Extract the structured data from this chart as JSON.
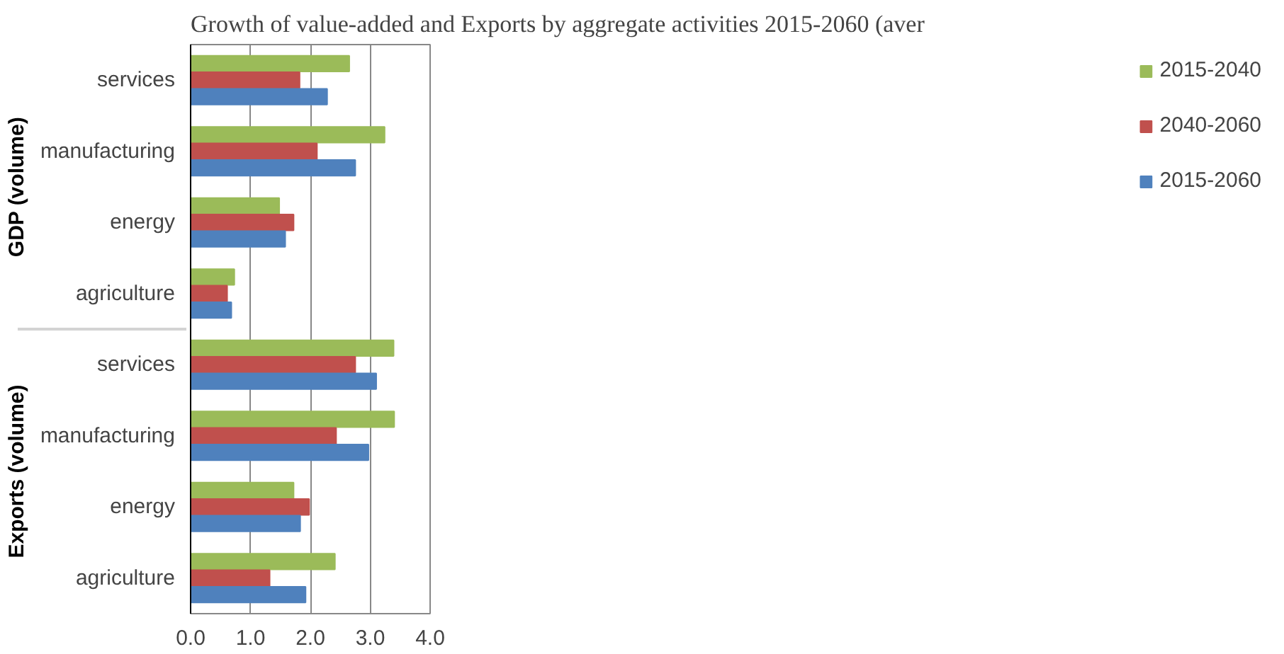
{
  "chart_data": {
    "type": "bar",
    "orientation": "horizontal",
    "title": "Growth of value-added and Exports by aggregate activities 2015-2060 (aver",
    "categories": [
      "services",
      "manufacturing",
      "energy",
      "agriculture",
      "services",
      "manufacturing",
      "energy",
      "agriculture"
    ],
    "annotations": [
      "GDP (volume)",
      "Exports (volume)"
    ],
    "series": [
      {
        "name": "2015-2040",
        "color": "#9bbb59",
        "values": [
          2.65,
          3.24,
          1.48,
          0.73,
          3.39,
          3.4,
          1.72,
          2.41
        ]
      },
      {
        "name": "2040-2060",
        "color": "#c0504d",
        "values": [
          1.82,
          2.11,
          1.72,
          0.61,
          2.75,
          2.43,
          1.98,
          1.32
        ]
      },
      {
        "name": "2015-2060",
        "color": "#4f81bd",
        "values": [
          2.28,
          2.75,
          1.58,
          0.68,
          3.1,
          2.97,
          1.83,
          1.92
        ]
      }
    ],
    "xlim": [
      0,
      4
    ],
    "xticks": [
      {
        "value": 0,
        "label": "0.0"
      },
      {
        "value": 1,
        "label": "1.0"
      },
      {
        "value": 2,
        "label": "2.0"
      },
      {
        "value": 3,
        "label": "3.0"
      },
      {
        "value": 4,
        "label": "4.0"
      }
    ],
    "grid": "x",
    "legend": "right"
  }
}
